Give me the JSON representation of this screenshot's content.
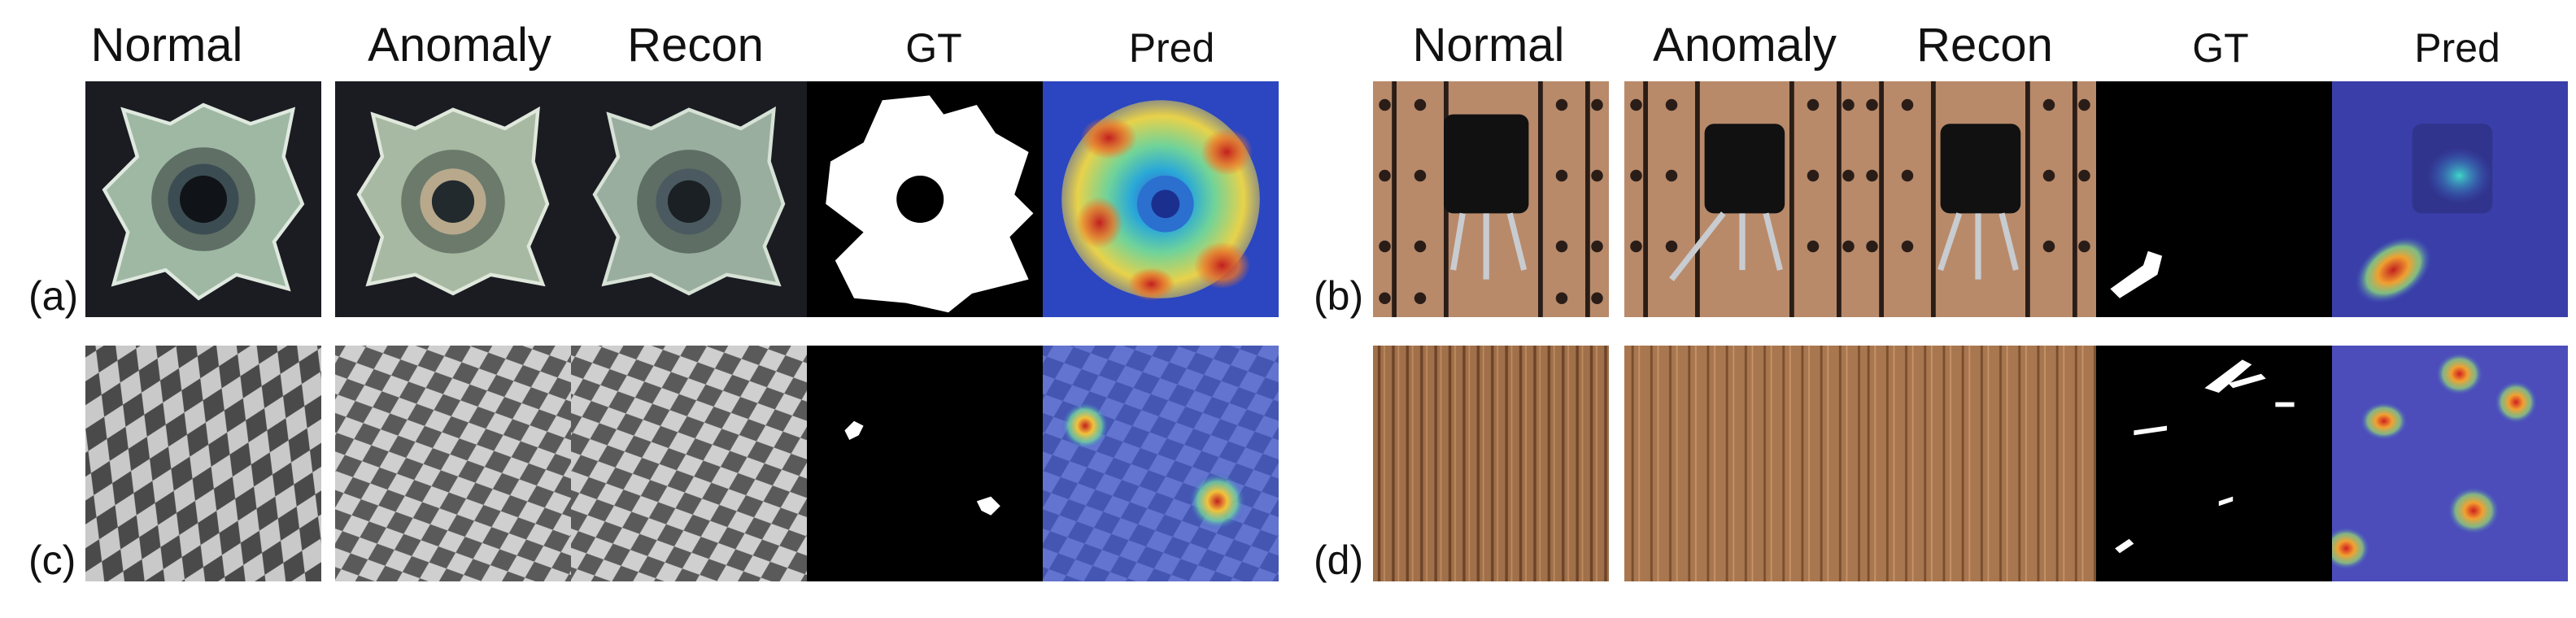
{
  "headers": {
    "left": {
      "normal": "Normal",
      "anomaly": "Anomaly",
      "recon": "Recon",
      "gt": "GT",
      "pred": "Pred"
    },
    "right": {
      "normal": "Normal",
      "anomaly": "Anomaly",
      "recon": "Recon",
      "gt": "GT",
      "pred": "Pred"
    }
  },
  "panels": {
    "a": {
      "label": "(a)"
    },
    "b": {
      "label": "(b)"
    },
    "c": {
      "label": "(c)"
    },
    "d": {
      "label": "(d)"
    }
  }
}
